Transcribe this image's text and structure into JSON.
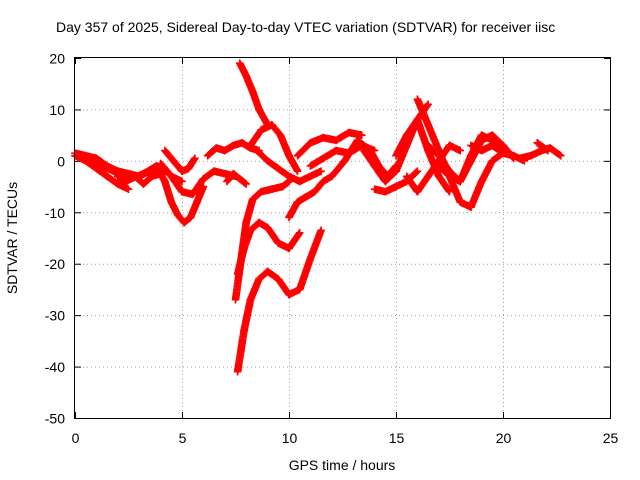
{
  "chart_data": {
    "type": "scatter",
    "title": "Day 357 of 2025, Sidereal Day-to-day VTEC variation (SDTVAR) for receiver iisc",
    "xlabel": "GPS time / hours",
    "ylabel": "SDTVAR / TECUs",
    "xlim": [
      0,
      25
    ],
    "ylim": [
      -50,
      20
    ],
    "xticks": [
      0,
      5,
      10,
      15,
      20,
      25
    ],
    "yticks": [
      -50,
      -40,
      -30,
      -20,
      -10,
      0,
      10,
      20
    ],
    "grid": true,
    "marker": "+",
    "color": "#ff0000",
    "series": [
      {
        "x": [
          0.0,
          0.5,
          1.0,
          1.5,
          2.0,
          2.5,
          3.0,
          3.5,
          4.0,
          4.5,
          5.0
        ],
        "y": [
          1.5,
          1.0,
          0.5,
          -1.0,
          -2.0,
          -2.5,
          -3.0,
          -2.0,
          -1.0,
          -3.0,
          -4.0
        ]
      },
      {
        "x": [
          0.0,
          0.5,
          1.0,
          1.5,
          2.0,
          2.5
        ],
        "y": [
          1.0,
          0.0,
          -1.5,
          -3.0,
          -4.5,
          -5.5
        ]
      },
      {
        "x": [
          0.2,
          1.0,
          1.8,
          2.6,
          3.2,
          3.8,
          4.2
        ],
        "y": [
          0.8,
          -0.5,
          -2.0,
          -3.5,
          -2.5,
          -1.0,
          -2.0
        ]
      },
      {
        "x": [
          2.0,
          2.4,
          2.8,
          3.2,
          3.6,
          4.0
        ],
        "y": [
          -3.0,
          -4.0,
          -3.0,
          -4.5,
          -3.0,
          -2.5
        ]
      },
      {
        "x": [
          3.8,
          4.2,
          4.5,
          4.8,
          5.1,
          5.4,
          5.7,
          6.0
        ],
        "y": [
          -1.0,
          -4.0,
          -8.0,
          -10.5,
          -12.0,
          -11.0,
          -8.0,
          -5.0
        ]
      },
      {
        "x": [
          4.0,
          4.5,
          5.0,
          5.5,
          6.0,
          6.5,
          7.0,
          7.5
        ],
        "y": [
          -0.5,
          -3.0,
          -6.0,
          -6.5,
          -3.5,
          -2.0,
          -2.5,
          -3.0
        ]
      },
      {
        "x": [
          4.2,
          4.6,
          5.0,
          5.3,
          5.6
        ],
        "y": [
          2.0,
          0.0,
          -2.0,
          -1.5,
          0.5
        ]
      },
      {
        "x": [
          6.2,
          6.6,
          7.0,
          7.4,
          7.8,
          8.2,
          8.6
        ],
        "y": [
          1.0,
          2.5,
          2.0,
          3.0,
          3.5,
          2.5,
          2.0
        ]
      },
      {
        "x": [
          7.1,
          7.4,
          7.7,
          8.0
        ],
        "y": [
          -4.0,
          -2.5,
          -3.5,
          -4.5
        ]
      },
      {
        "x": [
          7.7,
          8.0,
          8.3,
          8.6,
          9.0
        ],
        "y": [
          19.0,
          16.5,
          13.5,
          10.0,
          7.0
        ]
      },
      {
        "x": [
          7.5,
          7.7,
          8.0,
          8.3,
          8.7,
          9.2,
          9.7,
          10.0
        ],
        "y": [
          -27.0,
          -21.0,
          -12.0,
          -7.5,
          -6.0,
          -5.5,
          -5.0,
          -4.0
        ]
      },
      {
        "x": [
          7.6,
          7.9,
          8.2,
          8.6,
          9.0,
          9.5,
          10.0,
          10.5
        ],
        "y": [
          -22.0,
          -17.0,
          -13.5,
          -12.0,
          -13.0,
          -16.0,
          -17.0,
          -14.0
        ]
      },
      {
        "x": [
          7.6,
          7.9,
          8.2,
          8.6,
          9.0,
          9.5,
          10.0,
          10.5,
          11.0,
          11.5
        ],
        "y": [
          -41.0,
          -33.0,
          -27.0,
          -23.0,
          -21.5,
          -23.0,
          -26.0,
          -25.0,
          -19.0,
          -13.5
        ]
      },
      {
        "x": [
          8.2,
          8.7,
          9.2,
          9.6,
          10.0,
          10.4
        ],
        "y": [
          3.0,
          6.0,
          7.0,
          5.0,
          1.0,
          -2.0
        ]
      },
      {
        "x": [
          8.5,
          9.0,
          9.5,
          10.0,
          10.5,
          11.0,
          11.5
        ],
        "y": [
          2.0,
          0.0,
          -1.5,
          -3.0,
          -4.0,
          -3.0,
          -2.0
        ]
      },
      {
        "x": [
          10.0,
          10.4,
          10.8,
          11.2,
          11.6,
          12.0
        ],
        "y": [
          -11.0,
          -8.0,
          -7.0,
          -6.0,
          -4.0,
          -3.0
        ]
      },
      {
        "x": [
          10.4,
          11.0,
          11.6,
          12.2,
          12.8,
          13.4
        ],
        "y": [
          1.0,
          3.5,
          4.5,
          4.0,
          5.5,
          5.0
        ]
      },
      {
        "x": [
          11.0,
          11.6,
          12.2,
          12.8,
          13.4,
          14.0
        ],
        "y": [
          -1.0,
          0.5,
          2.0,
          1.5,
          3.0,
          2.0
        ]
      },
      {
        "x": [
          12.0,
          12.6,
          13.2,
          13.8,
          14.2,
          14.6,
          15.0
        ],
        "y": [
          -3.0,
          0.0,
          4.0,
          2.0,
          -1.0,
          -3.0,
          -1.0
        ]
      },
      {
        "x": [
          13.5,
          14.0,
          14.5,
          15.0,
          15.5,
          16.0,
          16.5
        ],
        "y": [
          2.0,
          -1.0,
          -4.0,
          -2.0,
          3.0,
          8.0,
          11.0
        ]
      },
      {
        "x": [
          14.0,
          14.5,
          15.0,
          15.5,
          16.0
        ],
        "y": [
          -5.5,
          -6.0,
          -5.0,
          -4.0,
          -2.0
        ]
      },
      {
        "x": [
          15.0,
          15.5,
          16.0,
          16.5,
          17.0,
          17.5
        ],
        "y": [
          1.0,
          5.0,
          8.0,
          2.0,
          -3.0,
          -6.0
        ]
      },
      {
        "x": [
          15.5,
          16.0,
          16.5,
          17.0,
          17.5,
          18.0
        ],
        "y": [
          -3.0,
          -6.0,
          -3.0,
          0.0,
          3.0,
          2.0
        ]
      },
      {
        "x": [
          16.0,
          16.5,
          17.0,
          17.5,
          18.0,
          18.5,
          19.0,
          19.5,
          20.0
        ],
        "y": [
          12.0,
          7.0,
          2.0,
          -3.0,
          -8.0,
          -9.0,
          -4.0,
          0.0,
          1.5
        ]
      },
      {
        "x": [
          16.5,
          17.0,
          17.5,
          18.0,
          18.5,
          19.0,
          19.5,
          20.0,
          20.5
        ],
        "y": [
          3.0,
          1.0,
          -2.0,
          -4.0,
          0.0,
          4.0,
          5.0,
          3.0,
          0.5
        ]
      },
      {
        "x": [
          17.0,
          17.5,
          18.0,
          18.5,
          19.0,
          19.5,
          20.0
        ],
        "y": [
          -1.0,
          -3.0,
          -4.0,
          1.0,
          5.0,
          4.0,
          2.0
        ]
      },
      {
        "x": [
          18.5,
          19.0,
          19.5,
          20.0,
          20.5,
          21.0
        ],
        "y": [
          3.0,
          2.0,
          3.0,
          1.5,
          1.0,
          0.0
        ]
      },
      {
        "x": [
          20.8,
          21.3,
          21.8,
          22.2,
          22.7
        ],
        "y": [
          0.5,
          1.0,
          2.0,
          2.5,
          1.0
        ]
      },
      {
        "x": [
          21.6,
          22.1
        ],
        "y": [
          3.5,
          2.0
        ]
      }
    ]
  }
}
